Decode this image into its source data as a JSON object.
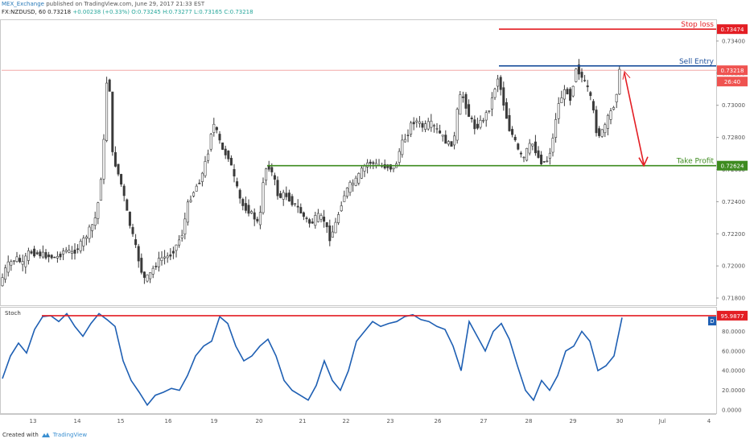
{
  "header": {
    "publisher": "MEX_Exchange",
    "published_text": "published on TradingView.com, June 29, 2017 21:33 EST",
    "symbol": "FX:NZDUSD, 60",
    "last": "0.73218",
    "change": "+0.00238 (+0.33%)",
    "ohlc_o": "O:0.73245",
    "ohlc_h": "H:0.73277",
    "ohlc_l": "L:0.73165",
    "ohlc_c": "C:0.73218"
  },
  "footer": {
    "created_with": "Created with",
    "brand": "TradingView"
  },
  "colors": {
    "up": "#26a69a",
    "down": "#ef5350",
    "candle": "#3a3a3a",
    "stop": "#e31e24",
    "entry": "#1c4f9c",
    "profit": "#3d8b1f",
    "stoch": "#1e5fb3"
  },
  "chart_data": [
    {
      "type": "candlestick",
      "title": "FX:NZDUSD, 60",
      "ylim": [
        0.7175,
        0.7352
      ],
      "y_ticks": [
        "0.73400",
        "0.73200",
        "0.73000",
        "0.72800",
        "0.72600",
        "0.72400",
        "0.72200",
        "0.72000",
        "0.71800"
      ],
      "x_ticks": [
        "13",
        "14",
        "15",
        "16",
        "19",
        "20",
        "21",
        "22",
        "23",
        "26",
        "27",
        "28",
        "29",
        "30",
        "Jul",
        "4"
      ],
      "price_path": [
        [
          0,
          0.7186
        ],
        [
          10,
          0.72
        ],
        [
          22,
          0.7205
        ],
        [
          30,
          0.7201
        ],
        [
          38,
          0.7209
        ],
        [
          45,
          0.7208
        ],
        [
          54,
          0.7207
        ],
        [
          63,
          0.7206
        ],
        [
          72,
          0.7205
        ],
        [
          82,
          0.721
        ],
        [
          91,
          0.7208
        ],
        [
          100,
          0.7212
        ],
        [
          108,
          0.7218
        ],
        [
          116,
          0.7225
        ],
        [
          122,
          0.7232
        ],
        [
          126,
          0.725
        ],
        [
          130,
          0.7268
        ],
        [
          134,
          0.7315
        ],
        [
          138,
          0.731
        ],
        [
          140,
          0.7272
        ],
        [
          146,
          0.7262
        ],
        [
          154,
          0.7248
        ],
        [
          160,
          0.7232
        ],
        [
          166,
          0.722
        ],
        [
          172,
          0.7208
        ],
        [
          180,
          0.7192
        ],
        [
          186,
          0.7193
        ],
        [
          194,
          0.72
        ],
        [
          202,
          0.7205
        ],
        [
          212,
          0.7206
        ],
        [
          220,
          0.7212
        ],
        [
          228,
          0.722
        ],
        [
          236,
          0.724
        ],
        [
          244,
          0.7248
        ],
        [
          252,
          0.7255
        ],
        [
          260,
          0.727
        ],
        [
          266,
          0.729
        ],
        [
          272,
          0.7282
        ],
        [
          278,
          0.7272
        ],
        [
          286,
          0.7268
        ],
        [
          294,
          0.7252
        ],
        [
          302,
          0.7238
        ],
        [
          310,
          0.7235
        ],
        [
          318,
          0.723
        ],
        [
          324,
          0.7225
        ],
        [
          330,
          0.726
        ],
        [
          336,
          0.7262
        ],
        [
          342,
          0.7255
        ],
        [
          348,
          0.7242
        ],
        [
          356,
          0.7245
        ],
        [
          364,
          0.724
        ],
        [
          372,
          0.7236
        ],
        [
          380,
          0.723
        ],
        [
          388,
          0.7226
        ],
        [
          396,
          0.7231
        ],
        [
          404,
          0.7229
        ],
        [
          412,
          0.7217
        ],
        [
          420,
          0.7228
        ],
        [
          428,
          0.7243
        ],
        [
          436,
          0.725
        ],
        [
          444,
          0.7253
        ],
        [
          452,
          0.726
        ],
        [
          460,
          0.7265
        ],
        [
          468,
          0.7263
        ],
        [
          476,
          0.7262
        ],
        [
          484,
          0.7262
        ],
        [
          492,
          0.726
        ],
        [
          500,
          0.7275
        ],
        [
          508,
          0.7282
        ],
        [
          514,
          0.729
        ],
        [
          520,
          0.729
        ],
        [
          528,
          0.7286
        ],
        [
          536,
          0.7289
        ],
        [
          544,
          0.7285
        ],
        [
          552,
          0.728
        ],
        [
          560,
          0.7275
        ],
        [
          566,
          0.7278
        ],
        [
          572,
          0.7305
        ],
        [
          578,
          0.7305
        ],
        [
          584,
          0.7294
        ],
        [
          592,
          0.7286
        ],
        [
          600,
          0.729
        ],
        [
          608,
          0.7296
        ],
        [
          614,
          0.7305
        ],
        [
          620,
          0.7318
        ],
        [
          624,
          0.731
        ],
        [
          628,
          0.73
        ],
        [
          634,
          0.7286
        ],
        [
          640,
          0.728
        ],
        [
          646,
          0.7271
        ],
        [
          652,
          0.7266
        ],
        [
          658,
          0.7274
        ],
        [
          664,
          0.7276
        ],
        [
          670,
          0.7268
        ],
        [
          676,
          0.7264
        ],
        [
          682,
          0.7266
        ],
        [
          688,
          0.7276
        ],
        [
          694,
          0.7298
        ],
        [
          700,
          0.7306
        ],
        [
          706,
          0.731
        ],
        [
          712,
          0.7302
        ],
        [
          716,
          0.7325
        ],
        [
          720,
          0.7322
        ],
        [
          726,
          0.7316
        ],
        [
          732,
          0.731
        ],
        [
          738,
          0.73
        ],
        [
          742,
          0.7285
        ],
        [
          748,
          0.7281
        ],
        [
          754,
          0.7288
        ],
        [
          760,
          0.7295
        ],
        [
          766,
          0.7302
        ],
        [
          772,
          0.7322
        ]
      ],
      "reference_line": 0.73218,
      "price_labels": [
        {
          "value": "0.73474",
          "color": "#e31e24"
        },
        {
          "value": "0.73218",
          "color": "#ef5350"
        },
        {
          "value": "26:40",
          "color": "#ef5350"
        },
        {
          "value": "0.72624",
          "color": "#3d8b1f"
        }
      ],
      "annotations": [
        {
          "label": "Stop loss",
          "price": 0.73474,
          "color": "#e31e24"
        },
        {
          "label": "Sell Entry",
          "price": 0.73245,
          "color": "#1c4f9c"
        },
        {
          "label": "Take Profit",
          "price": 0.72624,
          "color": "#3d8b1f"
        }
      ],
      "arrow": {
        "from_price": 0.732,
        "to_price": 0.72624,
        "color": "#e31e24"
      }
    },
    {
      "type": "line",
      "title": "Stoch",
      "ylim": [
        0,
        100
      ],
      "y_ticks": [
        "80.0000",
        "60.0000",
        "40.0000",
        "20.0000",
        "0.0000"
      ],
      "marker": {
        "value": "95.9877",
        "level": 95.9877,
        "color": "#e31e24"
      },
      "series_label": "D",
      "series": [
        {
          "name": "D",
          "x": [
            0,
            10,
            20,
            30,
            40,
            50,
            60,
            70,
            80,
            90,
            100,
            110,
            120,
            130,
            140,
            150,
            160,
            170,
            180,
            190,
            200,
            210,
            220,
            230,
            240,
            250,
            260,
            270,
            280,
            290,
            300,
            310,
            320,
            330,
            340,
            350,
            360,
            370,
            380,
            390,
            400,
            410,
            420,
            430,
            440,
            450,
            460,
            470,
            480,
            490,
            500,
            510,
            520,
            530,
            540,
            550,
            560,
            570,
            580,
            590,
            600,
            610,
            620,
            630,
            640,
            650,
            660,
            670,
            680,
            690,
            700,
            710,
            720,
            730,
            740,
            750,
            760,
            770
          ],
          "values": [
            32,
            55,
            68,
            58,
            82,
            95,
            96,
            90,
            98,
            85,
            75,
            88,
            98,
            92,
            85,
            50,
            30,
            18,
            5,
            15,
            18,
            22,
            20,
            35,
            55,
            65,
            70,
            95,
            88,
            65,
            50,
            55,
            65,
            72,
            55,
            30,
            20,
            15,
            10,
            25,
            50,
            30,
            20,
            40,
            70,
            80,
            90,
            85,
            88,
            90,
            95,
            97,
            92,
            90,
            85,
            82,
            65,
            40,
            90,
            75,
            60,
            80,
            88,
            72,
            45,
            20,
            10,
            30,
            20,
            35,
            60,
            65,
            80,
            70,
            40,
            45,
            55,
            94
          ]
        }
      ]
    }
  ]
}
